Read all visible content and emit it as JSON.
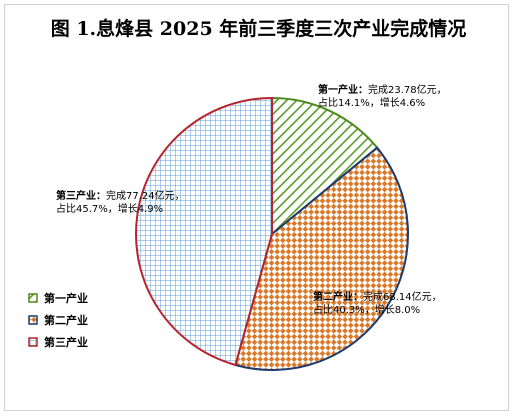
{
  "chart_data": {
    "type": "pie",
    "title": "图 1.息烽县 2025 年前三季度三次产业完成情况",
    "legend_position": "left",
    "slices": [
      {
        "name": "第一产业",
        "value": 23.78,
        "share_pct": 14.1,
        "growth_pct": 4.6,
        "color": "#5a9a2a",
        "label_name": "第一产业：",
        "label_line1": "完成23.78亿元，",
        "label_line2": "占比14.1%，增长4.6%"
      },
      {
        "name": "第二产业",
        "value": 68.14,
        "share_pct": 40.3,
        "growth_pct": 8.0,
        "color": "#d97a2b",
        "label_name": "第二产业：",
        "label_line1": "完成68.14亿元，",
        "label_line2": "占比40.3%，增长8.0%"
      },
      {
        "name": "第三产业",
        "value": 77.24,
        "share_pct": 45.7,
        "growth_pct": 4.9,
        "color": "#5b9bd5",
        "label_name": "第三产业：",
        "label_line1": "完成77.24亿元，",
        "label_line2": "占比45.7%，增长4.9%"
      }
    ],
    "legend": [
      "第一产业",
      "第二产业",
      "第三产业"
    ],
    "legend_border_colors": [
      "#4f8a1e",
      "#1f3a6e",
      "#b5252b"
    ]
  }
}
